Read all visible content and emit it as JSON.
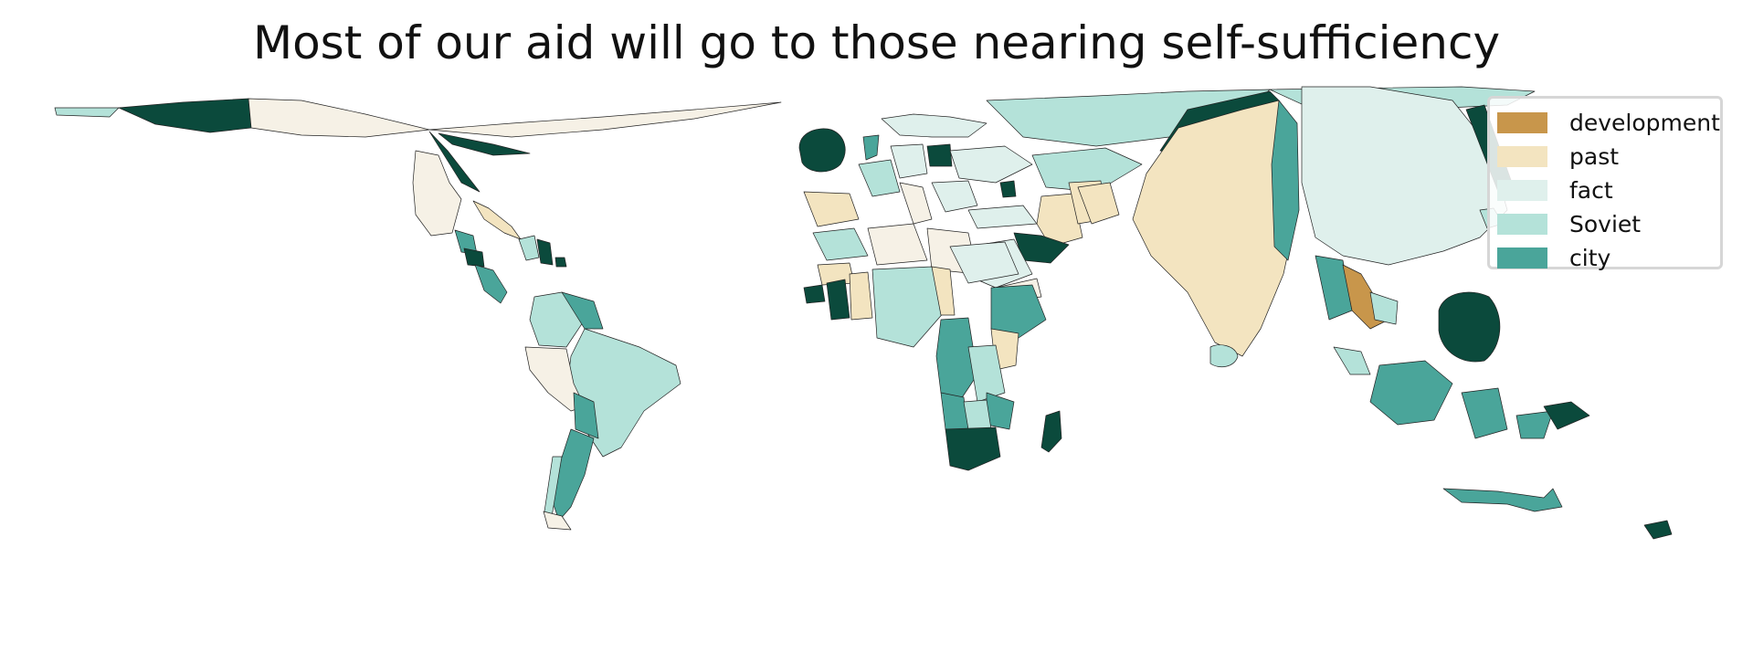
{
  "title": "Most of our aid will go to those nearing self-sufficiency",
  "legend": {
    "placement": "top-right",
    "items": [
      {
        "label": "development",
        "color": "#c8964b"
      },
      {
        "label": "past",
        "color": "#f3e4c0"
      },
      {
        "label": "fact",
        "color": "#dff0ec"
      },
      {
        "label": "Soviet",
        "color": "#b4e2d9"
      },
      {
        "label": "city",
        "color": "#4aa59a"
      }
    ]
  },
  "colors": {
    "dark_teal": "#0b4a3c",
    "cream": "#f6f1e6",
    "background": "#ffffff"
  }
}
